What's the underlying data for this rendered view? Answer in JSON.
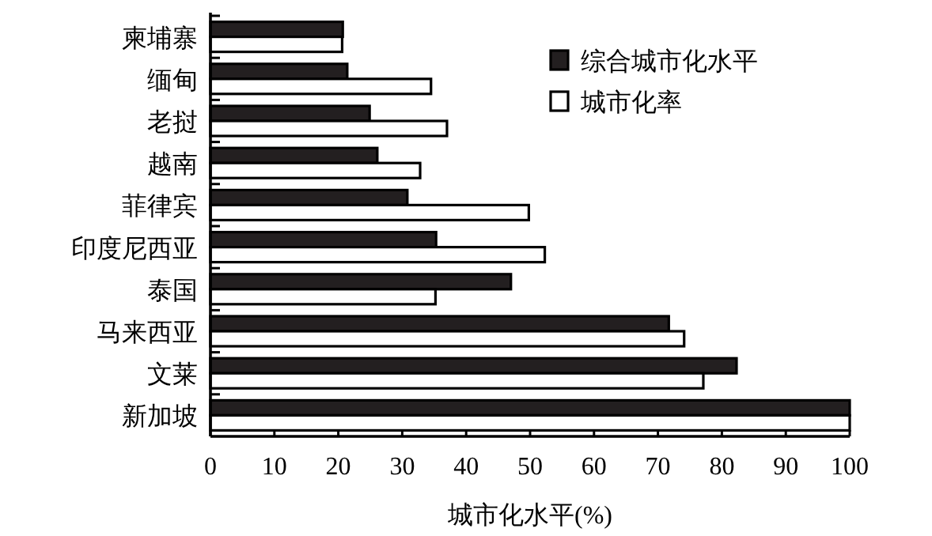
{
  "chart_data": {
    "type": "bar",
    "orientation": "horizontal",
    "xlabel": "城市化水平(%)",
    "categories": [
      "柬埔寨",
      "缅甸",
      "老挝",
      "越南",
      "菲律宾",
      "印度尼西亚",
      "泰国",
      "马来西亚",
      "文莱",
      "新加坡"
    ],
    "series": [
      {
        "name": "综合城市化水平",
        "color": "#231f20",
        "values": [
          20.7,
          21.4,
          24.9,
          26.1,
          30.8,
          35.3,
          47.0,
          71.7,
          82.3,
          100
        ]
      },
      {
        "name": "城市化率",
        "color": "#ffffff",
        "values": [
          20.6,
          34.5,
          37.0,
          32.8,
          49.8,
          52.3,
          35.2,
          74.1,
          77.1,
          100
        ]
      }
    ],
    "xlim": [
      0,
      100
    ],
    "xticks": [
      0,
      10,
      20,
      30,
      40,
      50,
      60,
      70,
      80,
      90,
      100
    ],
    "grid": false,
    "legend": "top right"
  }
}
